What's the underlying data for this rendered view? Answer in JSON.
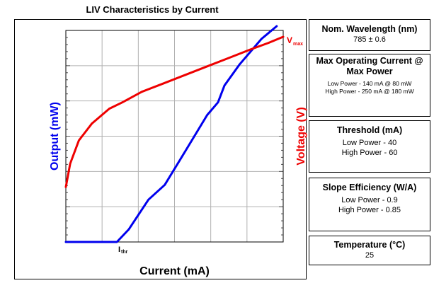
{
  "chart_data": {
    "type": "line",
    "title": "LIV Characteristics by Current",
    "xlabel": "Current (mA)",
    "ylabel": "Output (mW)",
    "y2label": "Voltage (V)",
    "annotations": {
      "threshold": "I",
      "threshold_sub": "thr",
      "vmax": "V",
      "vmax_sub": "max"
    },
    "grid": true,
    "x_range": [
      0,
      10
    ],
    "y_range": [
      0,
      10
    ],
    "series": [
      {
        "axis": "left",
        "color": "#0000ee",
        "x": [
          0,
          2.35,
          2.9,
          3.8,
          4.55,
          5.5,
          6.5,
          7.0,
          7.3,
          8.0,
          9.0,
          9.7
        ],
        "y": [
          0,
          0,
          0.6,
          2.0,
          2.7,
          4.3,
          6.0,
          6.6,
          7.4,
          8.4,
          9.6,
          10.2
        ]
      },
      {
        "axis": "right",
        "color": "#ee0000",
        "x": [
          0,
          0.2,
          0.6,
          1.2,
          2.0,
          2.6,
          3.5,
          4.5,
          5.5,
          6.5,
          7.5,
          8.5,
          9.3,
          10
        ],
        "y": [
          2.6,
          3.7,
          4.8,
          5.6,
          6.3,
          6.6,
          7.1,
          7.5,
          7.9,
          8.3,
          8.7,
          9.1,
          9.4,
          9.7
        ]
      }
    ]
  },
  "specs": {
    "wavelength": {
      "title": "Nom. Wavelength (nm)",
      "lines": [
        "785 ± 0.6"
      ]
    },
    "max_current": {
      "title": "Max Operating Current @ Max Power",
      "lines": [
        "Low Power - 140 mA @ 80 mW",
        "High Power - 250 mA @ 180 mW"
      ]
    },
    "threshold": {
      "title": "Threshold (mA)",
      "lines": [
        "Low Power - 40",
        "High Power - 60"
      ]
    },
    "slope": {
      "title": "Slope Efficiency (W/A)",
      "lines": [
        "Low Power - 0.9",
        "High Power - 0.85"
      ]
    },
    "temperature": {
      "title": "Temperature (°C)",
      "lines": [
        "25"
      ]
    }
  },
  "colors": {
    "output": "#0000ee",
    "voltage": "#ee0000",
    "grid": "#b0b0b0"
  }
}
